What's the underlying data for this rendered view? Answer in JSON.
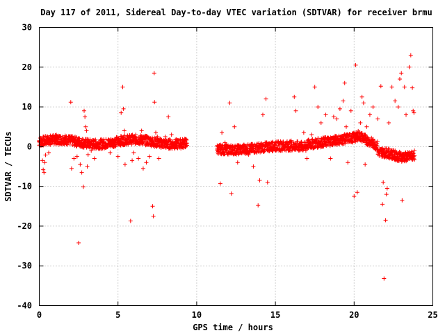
{
  "chart_data": {
    "type": "scatter",
    "title": "Day 117 of 2011, Sidereal Day-to-day VTEC variation (SDTVAR) for receiver brmu",
    "xlabel": "GPS time / hours",
    "ylabel": "SDTVAR / TECUs",
    "xlim": [
      0,
      25
    ],
    "ylim": [
      -40,
      30
    ],
    "xticks": [
      0,
      5,
      10,
      15,
      20,
      25
    ],
    "yticks": [
      -40,
      -30,
      -20,
      -10,
      0,
      10,
      20,
      30
    ],
    "grid": true,
    "marker": "plus",
    "color": "#ff0000",
    "series": [
      {
        "values": [
          [
            0.0,
            1.5
          ],
          [
            0.1,
            2.2
          ],
          [
            0.15,
            0.8
          ],
          [
            0.2,
            -3.5
          ],
          [
            0.25,
            -5.8
          ],
          [
            0.3,
            -6.5
          ],
          [
            0.35,
            -4.0
          ],
          [
            0.4,
            -2.1
          ],
          [
            0.5,
            1.0
          ],
          [
            0.6,
            -1.5
          ],
          [
            0.7,
            0.5
          ],
          [
            0.8,
            1.8
          ],
          [
            1.0,
            1.2
          ],
          [
            1.2,
            0.5
          ],
          [
            1.4,
            1.0
          ],
          [
            1.6,
            0.8
          ],
          [
            2.0,
            11.2
          ],
          [
            2.05,
            -5.5
          ],
          [
            2.2,
            -3.0
          ],
          [
            2.4,
            -2.5
          ],
          [
            2.5,
            -24.2
          ],
          [
            2.6,
            -4.5
          ],
          [
            2.7,
            -6.5
          ],
          [
            2.8,
            -10.1
          ],
          [
            2.85,
            9.0
          ],
          [
            2.9,
            7.5
          ],
          [
            2.95,
            5.0
          ],
          [
            3.0,
            4.0
          ],
          [
            3.05,
            -5.0
          ],
          [
            3.1,
            -2.0
          ],
          [
            3.3,
            -1.0
          ],
          [
            3.5,
            -3.0
          ],
          [
            4.0,
            1.0
          ],
          [
            4.5,
            -1.5
          ],
          [
            4.8,
            0.5
          ],
          [
            5.0,
            -2.5
          ],
          [
            5.2,
            8.5
          ],
          [
            5.3,
            15.0
          ],
          [
            5.35,
            9.5
          ],
          [
            5.4,
            4.0
          ],
          [
            5.45,
            -4.5
          ],
          [
            5.6,
            1.0
          ],
          [
            5.8,
            -18.7
          ],
          [
            5.9,
            -3.5
          ],
          [
            6.0,
            -1.5
          ],
          [
            6.3,
            -3.0
          ],
          [
            6.5,
            4.0
          ],
          [
            6.6,
            -5.5
          ],
          [
            6.8,
            -4.0
          ],
          [
            7.0,
            -2.5
          ],
          [
            7.2,
            -15.0
          ],
          [
            7.25,
            -17.5
          ],
          [
            7.3,
            18.5
          ],
          [
            7.32,
            11.2
          ],
          [
            7.4,
            3.5
          ],
          [
            7.5,
            2.5
          ],
          [
            7.6,
            -3.0
          ],
          [
            8.0,
            2.5
          ],
          [
            8.2,
            7.5
          ],
          [
            8.4,
            3.0
          ],
          [
            8.6,
            1.0
          ],
          [
            9.0,
            1.2
          ],
          [
            9.2,
            0.5
          ],
          [
            11.5,
            -9.3
          ],
          [
            11.6,
            3.5
          ],
          [
            11.8,
            1.0
          ],
          [
            12.1,
            11.0
          ],
          [
            12.2,
            -11.8
          ],
          [
            12.4,
            5.0
          ],
          [
            12.6,
            -4.0
          ],
          [
            13.0,
            0.5
          ],
          [
            13.3,
            -2.0
          ],
          [
            13.6,
            -5.0
          ],
          [
            13.9,
            -14.8
          ],
          [
            14.0,
            -8.5
          ],
          [
            14.2,
            8.0
          ],
          [
            14.4,
            12.0
          ],
          [
            14.5,
            -9.0
          ],
          [
            14.8,
            1.0
          ],
          [
            15.5,
            0.5
          ],
          [
            16.0,
            1.5
          ],
          [
            16.2,
            12.5
          ],
          [
            16.3,
            9.0
          ],
          [
            16.5,
            -1.0
          ],
          [
            16.8,
            3.5
          ],
          [
            17.0,
            -3.0
          ],
          [
            17.3,
            3.0
          ],
          [
            17.5,
            15.0
          ],
          [
            17.7,
            10.0
          ],
          [
            17.9,
            6.0
          ],
          [
            18.2,
            8.0
          ],
          [
            18.5,
            -3.0
          ],
          [
            18.7,
            7.5
          ],
          [
            18.9,
            7.0
          ],
          [
            19.1,
            9.5
          ],
          [
            19.3,
            11.5
          ],
          [
            19.4,
            16.0
          ],
          [
            19.5,
            5.0
          ],
          [
            19.6,
            -4.0
          ],
          [
            19.8,
            9.0
          ],
          [
            20.0,
            -12.5
          ],
          [
            20.1,
            20.5
          ],
          [
            20.2,
            -11.5
          ],
          [
            20.4,
            6.0
          ],
          [
            20.5,
            12.5
          ],
          [
            20.6,
            11.0
          ],
          [
            20.7,
            -4.5
          ],
          [
            20.8,
            5.0
          ],
          [
            21.0,
            8.0
          ],
          [
            21.2,
            10.0
          ],
          [
            21.5,
            7.0
          ],
          [
            21.7,
            15.2
          ],
          [
            21.8,
            -14.5
          ],
          [
            21.85,
            -9.0
          ],
          [
            21.9,
            -33.2
          ],
          [
            22.0,
            -18.5
          ],
          [
            22.05,
            -12.0
          ],
          [
            22.1,
            -10.5
          ],
          [
            22.2,
            6.0
          ],
          [
            22.4,
            15.0
          ],
          [
            22.6,
            11.5
          ],
          [
            22.8,
            10.0
          ],
          [
            22.9,
            17.0
          ],
          [
            23.0,
            18.5
          ],
          [
            23.05,
            -13.5
          ],
          [
            23.2,
            15.0
          ],
          [
            23.3,
            8.0
          ],
          [
            23.5,
            20.0
          ],
          [
            23.6,
            23.0
          ],
          [
            23.7,
            14.8
          ],
          [
            23.75,
            9.0
          ],
          [
            23.8,
            8.5
          ]
        ]
      }
    ]
  }
}
